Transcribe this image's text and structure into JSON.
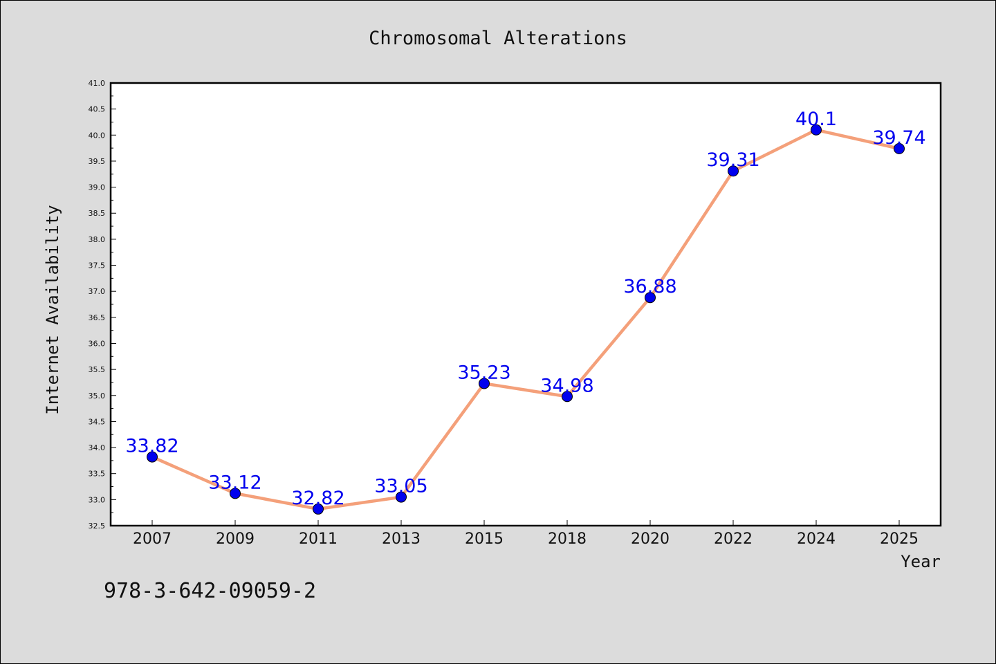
{
  "chart_data": {
    "type": "line",
    "title": "Chromosomal Alterations",
    "xlabel": "Year",
    "ylabel": "Internet Availability",
    "categories": [
      "2007",
      "2009",
      "2011",
      "2013",
      "2015",
      "2018",
      "2020",
      "2022",
      "2024",
      "2025"
    ],
    "series": [
      {
        "values": [
          33.82,
          33.12,
          32.82,
          33.05,
          35.23,
          34.98,
          36.88,
          39.31,
          40.1,
          39.74
        ],
        "data_labels": [
          "33.82",
          "33.12",
          "32.82",
          "33.05",
          "35.23",
          "34.98",
          "36.88",
          "39.31",
          "40.1",
          "39.74"
        ],
        "line_color": "#f4a07a",
        "marker_color": "#0000ee"
      }
    ],
    "ylim": [
      32.5,
      41.0
    ],
    "yticks": [
      "32.5",
      "33.0",
      "33.5",
      "34.0",
      "34.5",
      "35.0",
      "35.5",
      "36.0",
      "36.5",
      "37.0",
      "37.5",
      "38.0",
      "38.5",
      "39.0",
      "39.5",
      "40.0",
      "40.5",
      "41.0"
    ],
    "grid": false,
    "legend": "none",
    "label_color": "#0000ee"
  },
  "annotation": "978-3-642-09059-2"
}
